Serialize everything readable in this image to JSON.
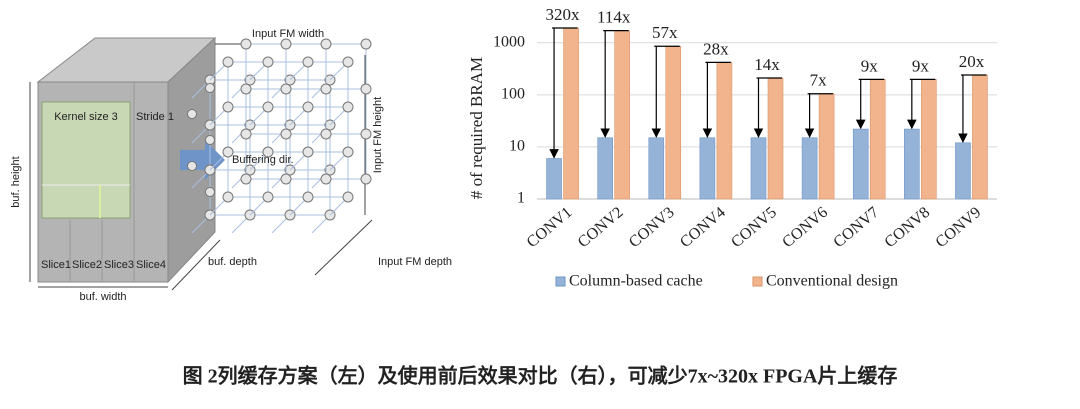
{
  "diagram": {
    "input_fm_width": "Input FM width",
    "input_fm_height": "Input FM height",
    "input_fm_depth": "Input FM depth",
    "kernel_size": "Kernel size 3",
    "stride": "Stride 1",
    "buffering_dir": "Buffering dir.",
    "buf_height": "buf. height",
    "buf_depth": "buf. depth",
    "buf_width": "buf. width",
    "slices": [
      "Slice1",
      "Slice2",
      "Slice3",
      "Slice4"
    ]
  },
  "chart_data": {
    "type": "bar",
    "ylabel": "# of required BRAM",
    "categories": [
      "CONV1",
      "CONV2",
      "CONV3",
      "CONV4",
      "CONV5",
      "CONV6",
      "CONV7",
      "CONV8",
      "CONV9"
    ],
    "series": [
      {
        "name": "Column-based cache",
        "color": "#95b3d7",
        "values": [
          6,
          15,
          15,
          15,
          15,
          15,
          22,
          22,
          12
        ]
      },
      {
        "name": "Conventional design",
        "color": "#f2b48c",
        "values": [
          1920,
          1710,
          855,
          420,
          210,
          105,
          198,
          198,
          240
        ]
      }
    ],
    "annotations": [
      "320x",
      "114x",
      "57x",
      "28x",
      "14x",
      "7x",
      "9x",
      "9x",
      "20x"
    ],
    "log_scale": true,
    "ylim": [
      1,
      2500
    ],
    "yticks": [
      1,
      10,
      100,
      1000
    ],
    "grid": true,
    "legend": "bottom"
  },
  "caption": "图 2列缓存方案（左）及使用前后效果对比（右），可减少7x~320x FPGA片上缓存"
}
